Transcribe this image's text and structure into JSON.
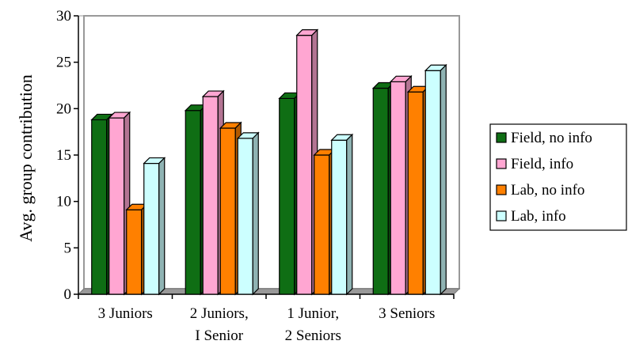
{
  "chart_data": {
    "type": "bar",
    "title": "",
    "xlabel": "",
    "ylabel": "Avg. group contribution",
    "ylim": [
      0,
      30
    ],
    "yticks": [
      0,
      5,
      10,
      15,
      20,
      25,
      30
    ],
    "grid": false,
    "legend_position": "right",
    "categories": [
      [
        "3 Juniors"
      ],
      [
        "2 Juniors,",
        "I Senior"
      ],
      [
        "1 Junior,",
        "2 Seniors"
      ],
      [
        "3 Seniors"
      ]
    ],
    "series": [
      {
        "name": "Field, no info",
        "color": "#0f6e14",
        "values": [
          18.8,
          19.8,
          21.1,
          22.2
        ]
      },
      {
        "name": "Field, info",
        "color": "#ffa6d2",
        "values": [
          19.0,
          21.3,
          27.9,
          22.9
        ]
      },
      {
        "name": "Lab, no info",
        "color": "#ff8000",
        "values": [
          9.1,
          17.9,
          15.0,
          21.8
        ]
      },
      {
        "name": "Lab, info",
        "color": "#ccffff",
        "values": [
          14.1,
          16.8,
          16.6,
          24.1
        ]
      }
    ]
  }
}
